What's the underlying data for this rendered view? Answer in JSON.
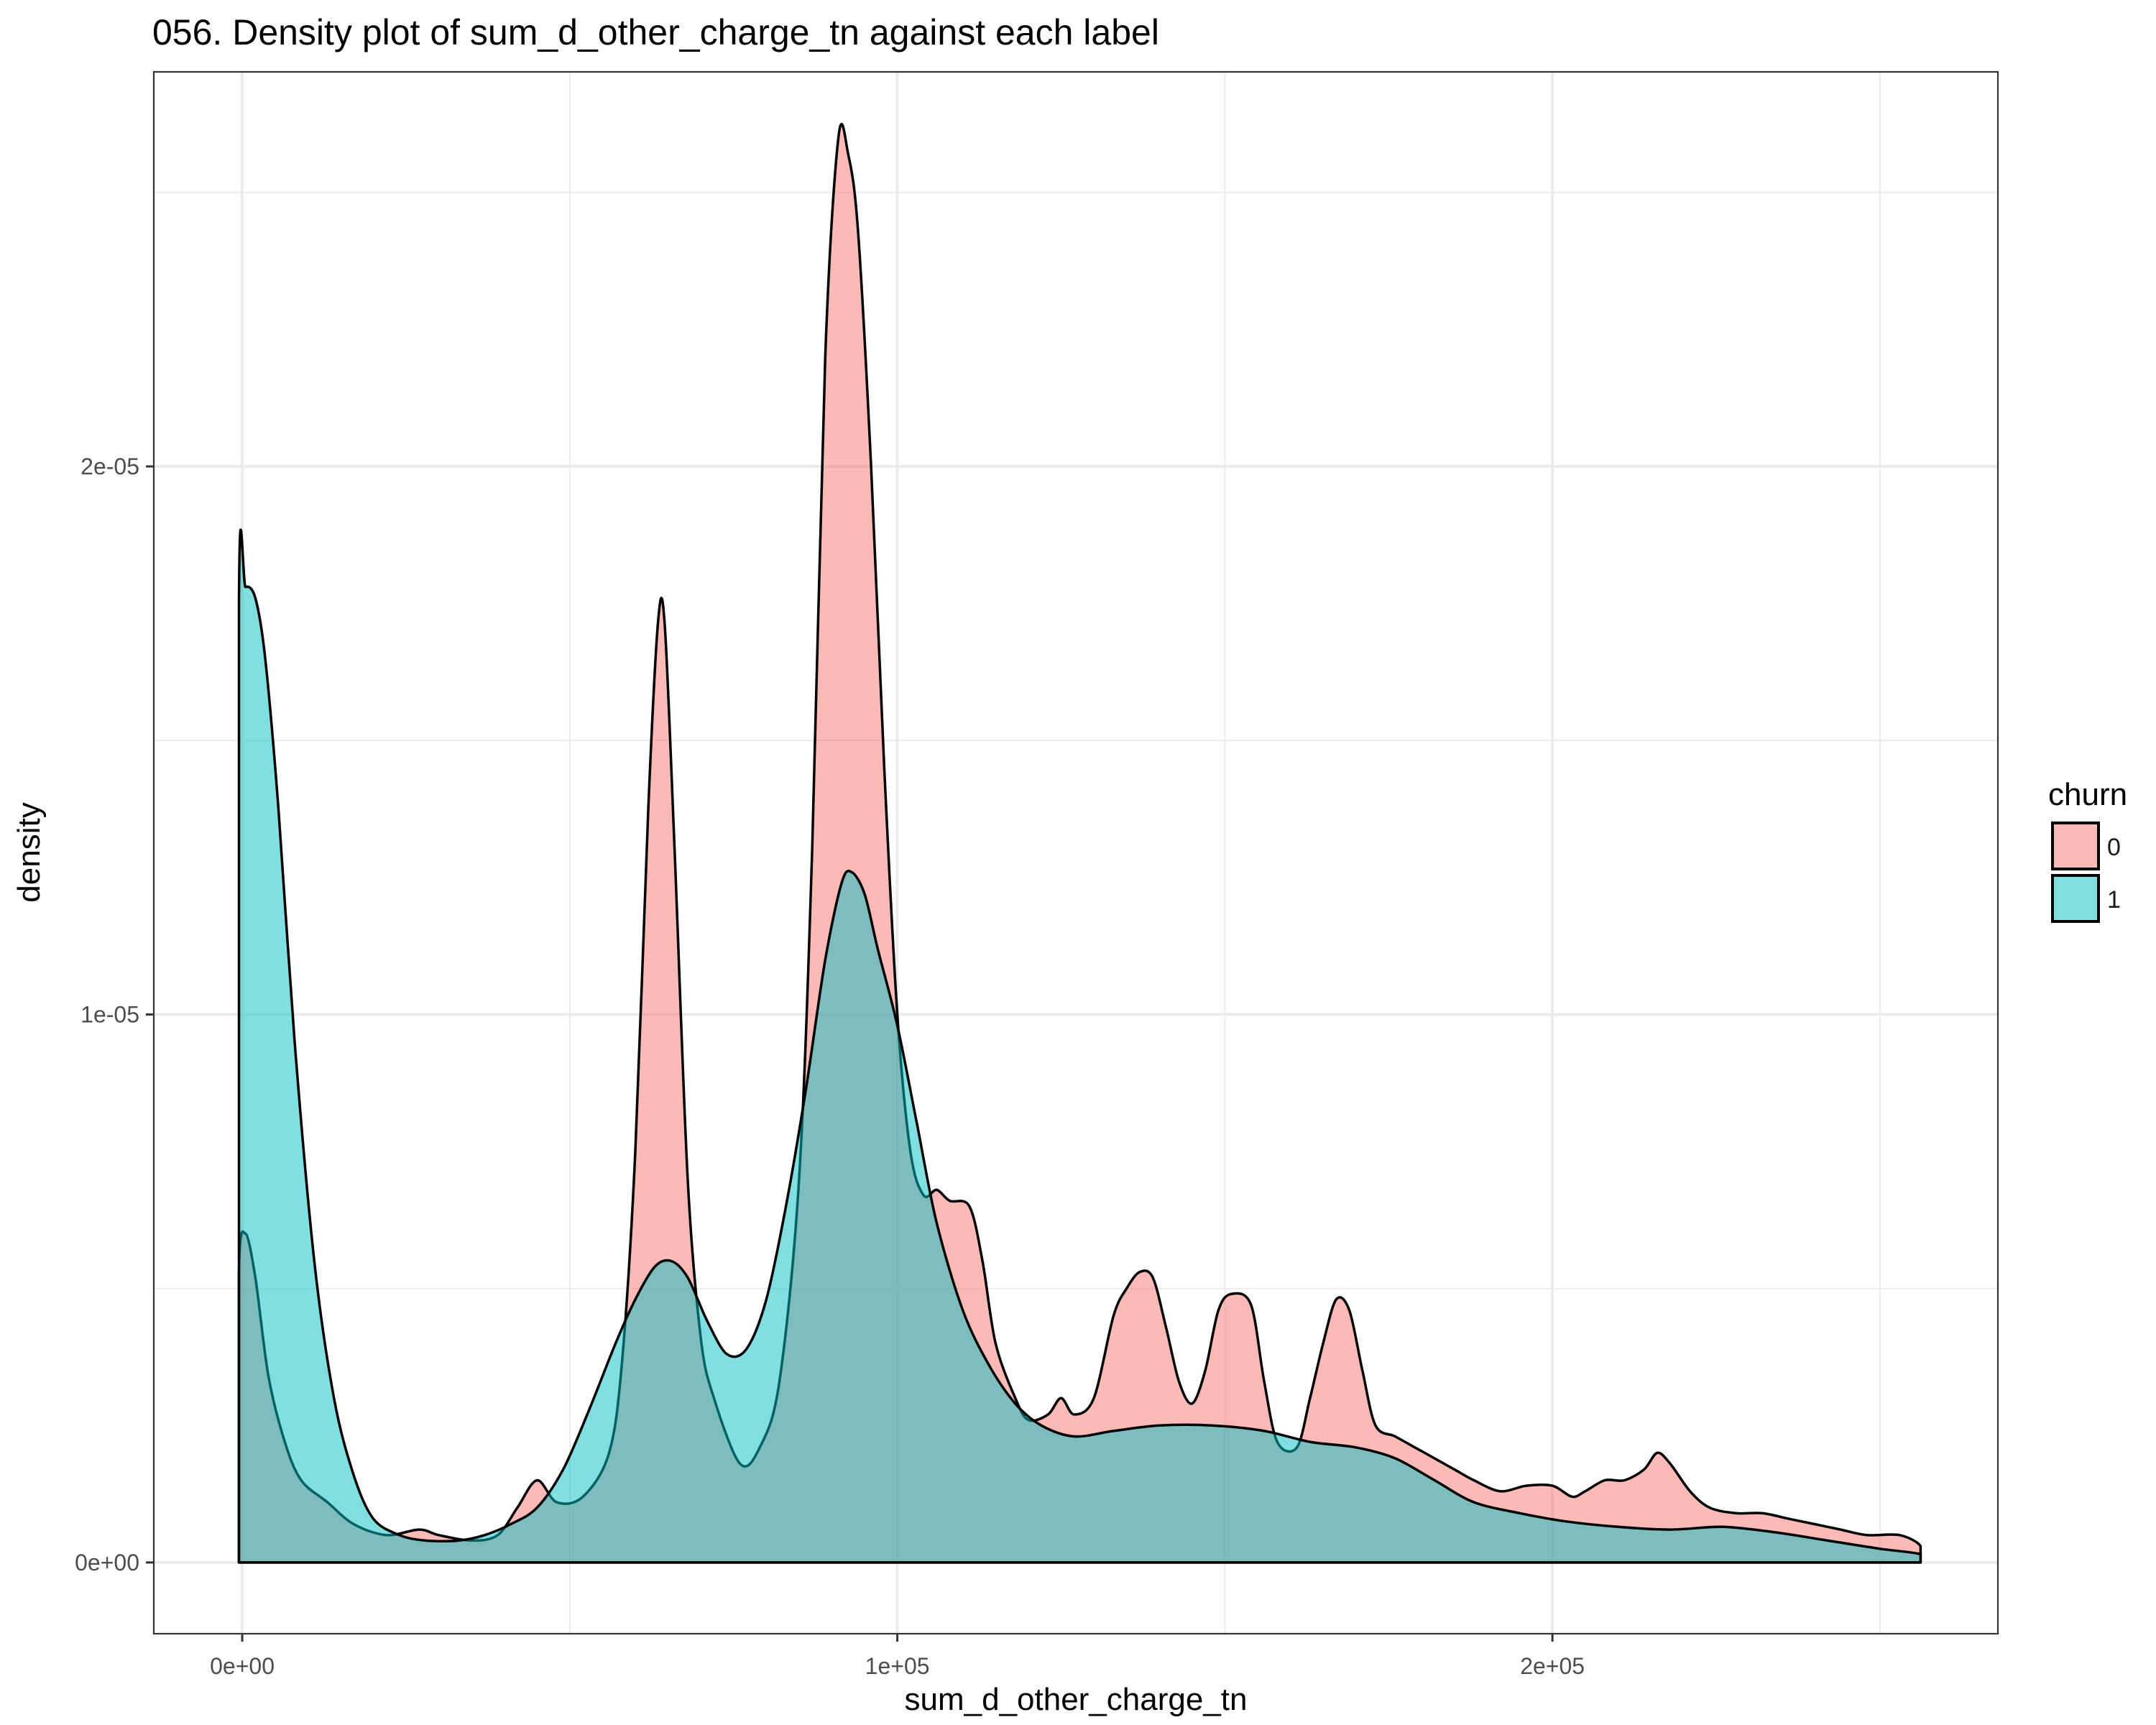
{
  "chart_data": {
    "type": "area",
    "title": "056. Density plot of sum_d_other_charge_tn against each label",
    "xlabel": "sum_d_other_charge_tn",
    "ylabel": "density",
    "xlim": [
      -13500,
      268000
    ],
    "ylim": [
      -1.3e-06,
      2.72e-05
    ],
    "x_ticks": [
      {
        "value": 0,
        "label": "0e+00"
      },
      {
        "value": 100000,
        "label": "1e+05"
      },
      {
        "value": 200000,
        "label": "2e+05"
      }
    ],
    "y_ticks": [
      {
        "value": 0,
        "label": "0e+00"
      },
      {
        "value": 1e-05,
        "label": "1e-05"
      },
      {
        "value": 2e-05,
        "label": "2e-05"
      }
    ],
    "grid": true,
    "legend": {
      "title": "churn",
      "position": "right"
    },
    "colors": {
      "series_0": "#F8766D",
      "series_1": "#00BFC4",
      "outline": "#000000",
      "grid": "#EBEBEB",
      "panel_border": "#333333"
    },
    "series": [
      {
        "name": "0",
        "color": "#F8766D",
        "points": [
          [
            -500,
            0
          ],
          [
            -500,
            5.3e-06
          ],
          [
            500,
            6e-06
          ],
          [
            2000,
            5.2e-06
          ],
          [
            4000,
            3.4e-06
          ],
          [
            6500,
            2.2e-06
          ],
          [
            9000,
            1.5e-06
          ],
          [
            13000,
            1.1e-06
          ],
          [
            17000,
            7e-07
          ],
          [
            22000,
            5e-07
          ],
          [
            27000,
            6e-07
          ],
          [
            30000,
            5e-07
          ],
          [
            35000,
            4e-07
          ],
          [
            39000,
            5e-07
          ],
          [
            42000,
            1e-06
          ],
          [
            45000,
            1.5e-06
          ],
          [
            48000,
            1.1e-06
          ],
          [
            52000,
            1.2e-06
          ],
          [
            56000,
            2e-06
          ],
          [
            58000,
            3.7e-06
          ],
          [
            60000,
            7.5e-06
          ],
          [
            62000,
            1.38e-05
          ],
          [
            63500,
            1.72e-05
          ],
          [
            64500,
            1.71e-05
          ],
          [
            66000,
            1.3e-05
          ],
          [
            68000,
            7e-06
          ],
          [
            70000,
            4.1e-06
          ],
          [
            72000,
            3e-06
          ],
          [
            76000,
            1.8e-06
          ],
          [
            79000,
            2.1e-06
          ],
          [
            82000,
            3.3e-06
          ],
          [
            85000,
            7e-06
          ],
          [
            87000,
            1.3e-05
          ],
          [
            89000,
            2.2e-05
          ],
          [
            91000,
            2.6e-05
          ],
          [
            92500,
            2.57e-05
          ],
          [
            94000,
            2.43e-05
          ],
          [
            96000,
            2e-05
          ],
          [
            98000,
            1.45e-05
          ],
          [
            100000,
            1e-05
          ],
          [
            102000,
            7.5e-06
          ],
          [
            104000,
            6.7e-06
          ],
          [
            106000,
            6.8e-06
          ],
          [
            108000,
            6.6e-06
          ],
          [
            111000,
            6.5e-06
          ],
          [
            113000,
            5.5e-06
          ],
          [
            115000,
            4e-06
          ],
          [
            118000,
            3e-06
          ],
          [
            120000,
            2.6e-06
          ],
          [
            123000,
            2.7e-06
          ],
          [
            125000,
            3e-06
          ],
          [
            127000,
            2.7e-06
          ],
          [
            130000,
            3e-06
          ],
          [
            133000,
            4.5e-06
          ],
          [
            135000,
            5e-06
          ],
          [
            137000,
            5.3e-06
          ],
          [
            139000,
            5.2e-06
          ],
          [
            141000,
            4.3e-06
          ],
          [
            143000,
            3.3e-06
          ],
          [
            145000,
            2.9e-06
          ],
          [
            147000,
            3.5e-06
          ],
          [
            149000,
            4.6e-06
          ],
          [
            151000,
            4.9e-06
          ],
          [
            154000,
            4.7e-06
          ],
          [
            156000,
            3.3e-06
          ],
          [
            158000,
            2.2e-06
          ],
          [
            161000,
            2.1e-06
          ],
          [
            163000,
            3e-06
          ],
          [
            165000,
            4e-06
          ],
          [
            167000,
            4.8e-06
          ],
          [
            169000,
            4.6e-06
          ],
          [
            171000,
            3.5e-06
          ],
          [
            173000,
            2.5e-06
          ],
          [
            176000,
            2.3e-06
          ],
          [
            179000,
            2.1e-06
          ],
          [
            182000,
            1.9e-06
          ],
          [
            185000,
            1.7e-06
          ],
          [
            188000,
            1.5e-06
          ],
          [
            192000,
            1.3e-06
          ],
          [
            196000,
            1.4e-06
          ],
          [
            200000,
            1.4e-06
          ],
          [
            203000,
            1.2e-06
          ],
          [
            205000,
            1.3e-06
          ],
          [
            208000,
            1.5e-06
          ],
          [
            211000,
            1.5e-06
          ],
          [
            214000,
            1.7e-06
          ],
          [
            216000,
            2e-06
          ],
          [
            218000,
            1.8e-06
          ],
          [
            221000,
            1.3e-06
          ],
          [
            224000,
            1e-06
          ],
          [
            228000,
            9e-07
          ],
          [
            232000,
            9e-07
          ],
          [
            236000,
            8e-07
          ],
          [
            240000,
            7e-07
          ],
          [
            244000,
            6e-07
          ],
          [
            248000,
            5e-07
          ],
          [
            253000,
            5e-07
          ],
          [
            256200,
            3e-07
          ],
          [
            256200,
            0
          ]
        ]
      },
      {
        "name": "1",
        "color": "#00BFC4",
        "points": [
          [
            -500,
            0
          ],
          [
            -500,
            1.75e-05
          ],
          [
            500,
            1.78e-05
          ],
          [
            2000,
            1.76e-05
          ],
          [
            3500,
            1.65e-05
          ],
          [
            5500,
            1.38e-05
          ],
          [
            8000,
            9.5e-06
          ],
          [
            11000,
            5.5e-06
          ],
          [
            14000,
            3e-06
          ],
          [
            17000,
            1.6e-06
          ],
          [
            20000,
            8e-07
          ],
          [
            24000,
            5e-07
          ],
          [
            28000,
            4e-07
          ],
          [
            33000,
            4e-07
          ],
          [
            37000,
            5e-07
          ],
          [
            41000,
            7e-07
          ],
          [
            45000,
            1e-06
          ],
          [
            49000,
            1.7e-06
          ],
          [
            53000,
            2.8e-06
          ],
          [
            57000,
            4e-06
          ],
          [
            60000,
            4.8e-06
          ],
          [
            63000,
            5.4e-06
          ],
          [
            65500,
            5.5e-06
          ],
          [
            68000,
            5.2e-06
          ],
          [
            71000,
            4.4e-06
          ],
          [
            74000,
            3.8e-06
          ],
          [
            77000,
            3.9e-06
          ],
          [
            80000,
            4.8e-06
          ],
          [
            83000,
            6.5e-06
          ],
          [
            86000,
            8.6e-06
          ],
          [
            89000,
            1.1e-05
          ],
          [
            91500,
            1.24e-05
          ],
          [
            93000,
            1.26e-05
          ],
          [
            95000,
            1.22e-05
          ],
          [
            97000,
            1.12e-05
          ],
          [
            100000,
            9.8e-06
          ],
          [
            103000,
            8e-06
          ],
          [
            106000,
            6.2e-06
          ],
          [
            110000,
            4.6e-06
          ],
          [
            114000,
            3.6e-06
          ],
          [
            118000,
            2.9e-06
          ],
          [
            122000,
            2.5e-06
          ],
          [
            127000,
            2.3e-06
          ],
          [
            133000,
            2.4e-06
          ],
          [
            140000,
            2.5e-06
          ],
          [
            148000,
            2.5e-06
          ],
          [
            156000,
            2.4e-06
          ],
          [
            163000,
            2.2e-06
          ],
          [
            170000,
            2.1e-06
          ],
          [
            176000,
            1.9e-06
          ],
          [
            182000,
            1.5e-06
          ],
          [
            188000,
            1.1e-06
          ],
          [
            195000,
            9e-07
          ],
          [
            202000,
            7.5e-07
          ],
          [
            210000,
            6.5e-07
          ],
          [
            218000,
            6e-07
          ],
          [
            226000,
            6.5e-07
          ],
          [
            234000,
            5.5e-07
          ],
          [
            242000,
            4e-07
          ],
          [
            250000,
            2.5e-07
          ],
          [
            256200,
            1.5e-07
          ],
          [
            256200,
            0
          ]
        ]
      }
    ]
  }
}
